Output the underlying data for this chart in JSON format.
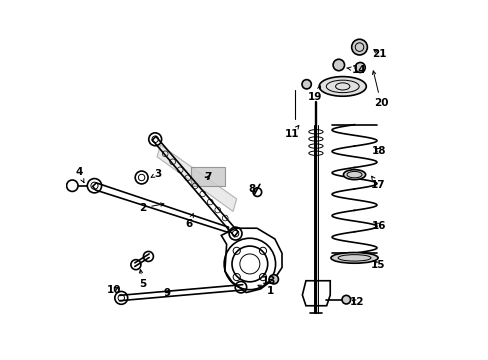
{
  "background_color": "#ffffff",
  "line_color": "#000000",
  "label_color": "#000000",
  "fig_width": 4.89,
  "fig_height": 3.6,
  "dpi": 100
}
